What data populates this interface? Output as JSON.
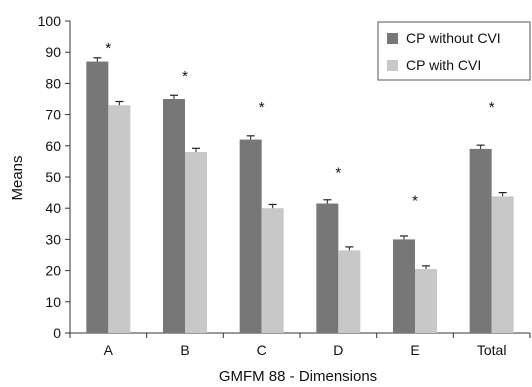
{
  "chart_data": {
    "type": "bar",
    "title": "",
    "xlabel": "GMFM 88 - Dimensions",
    "ylabel": "Means",
    "ylim": [
      0,
      100
    ],
    "yticks": [
      0,
      10,
      20,
      30,
      40,
      50,
      60,
      70,
      80,
      90,
      100
    ],
    "grid": false,
    "legend_position": "top-right",
    "categories": [
      "A",
      "B",
      "C",
      "D",
      "E",
      "Total"
    ],
    "series": [
      {
        "name": "CP without CVI",
        "color": "#777777",
        "values": [
          87,
          75,
          62,
          41.5,
          30,
          59
        ],
        "errors": [
          1.2,
          1.2,
          1.2,
          1.2,
          1.1,
          1.2
        ]
      },
      {
        "name": "CP with CVI",
        "color": "#c8c8c8",
        "values": [
          73,
          58,
          40,
          26.5,
          20.5,
          43.8
        ],
        "errors": [
          1.2,
          1.2,
          1.2,
          1.1,
          1.0,
          1.2
        ]
      }
    ],
    "annotations": {
      "significance_marker": "*",
      "marked_categories": [
        "A",
        "B",
        "C",
        "D",
        "E",
        "Total"
      ],
      "marker_values": [
        93,
        84,
        74,
        53,
        44,
        74
      ]
    }
  }
}
